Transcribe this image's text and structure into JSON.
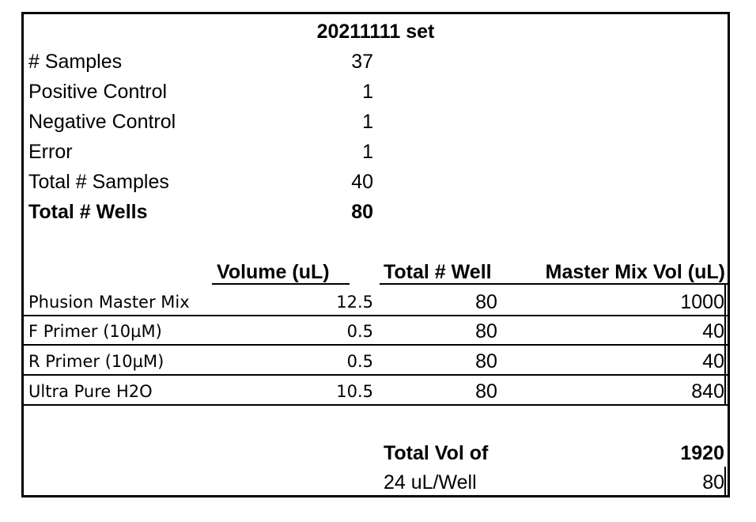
{
  "title": "20211111 set",
  "summary": [
    {
      "label": "# Samples",
      "value": "37"
    },
    {
      "label": "Positive Control",
      "value": "1"
    },
    {
      "label": "Negative Control",
      "value": "1"
    },
    {
      "label": "Error",
      "value": "1"
    },
    {
      "label": "Total # Samples",
      "value": "40"
    },
    {
      "label": "Total # Wells",
      "value": "80"
    }
  ],
  "headers": {
    "volume": "Volume (uL)",
    "wells": "Total # Well",
    "master": "Master Mix Vol (uL)"
  },
  "rows": [
    {
      "name": "Phusion Master Mix",
      "volume": "12.5",
      "wells": "80",
      "master": "1000"
    },
    {
      "name": "F Primer (10µM)",
      "volume": "0.5",
      "wells": "80",
      "master": "40"
    },
    {
      "name": "R Primer (10µM)",
      "volume": "0.5",
      "wells": "80",
      "master": "40"
    },
    {
      "name": "Ultra Pure H2O",
      "volume": "10.5",
      "wells": "80",
      "master": "840"
    }
  ],
  "totals": {
    "total_label": "Total Vol of",
    "total_value": "1920",
    "per_well_label": "24 uL/Well",
    "per_well_value": "80"
  }
}
